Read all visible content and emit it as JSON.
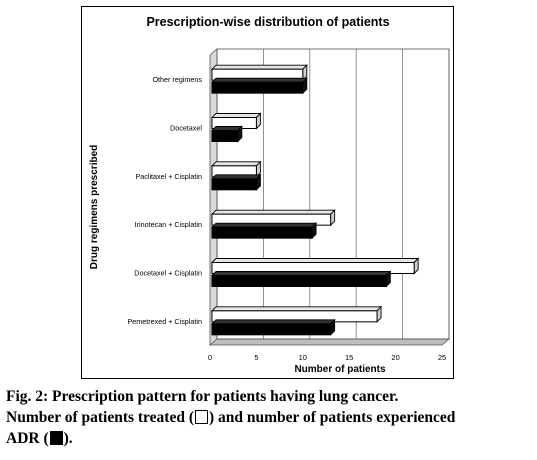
{
  "chart_data": {
    "type": "bar",
    "orientation": "horizontal",
    "style": "3d",
    "title": "Prescription-wise distribution of patients",
    "xlabel": "Number of patients",
    "ylabel": "Drug regimens prescribed",
    "xlim": [
      0,
      25
    ],
    "xticks": [
      "0",
      "5",
      "10",
      "15",
      "20",
      "25"
    ],
    "grid": true,
    "categories": [
      "Other regimens",
      "Docetaxel",
      "Paclitaxel + Cisplatin",
      "Irinotecan + Cisplatin",
      "Docetaxel + Cisplatin",
      "Pemetrexed + Cisplatin"
    ],
    "series": [
      {
        "values": [
          10,
          5,
          5,
          13,
          22,
          18
        ],
        "color": "#ffffff"
      },
      {
        "values": [
          10,
          3,
          5,
          11,
          19,
          13
        ],
        "color": "#000000"
      }
    ]
  },
  "caption": {
    "line1": "Fig. 2: Prescription pattern for patients having lung cancer.",
    "line2_a": "Number of patients treated (",
    "line2_b": ") and number of patients experienced",
    "line3_a": "ADR (",
    "line3_b": ")."
  }
}
